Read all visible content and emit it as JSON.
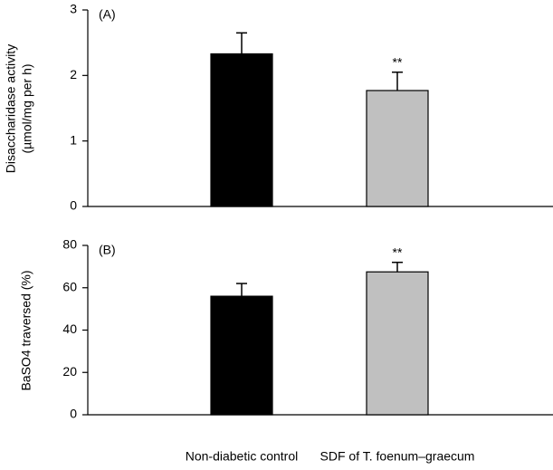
{
  "chart_data": [
    {
      "type": "bar",
      "panel_label": "(A)",
      "y_label": [
        "Disaccharidase activity",
        "(µmol/mg per h)"
      ],
      "values": [
        2.33,
        1.77
      ],
      "errors": [
        0.32,
        0.28
      ],
      "colors": [
        "#000000",
        "#c0c0c0"
      ],
      "significance": [
        null,
        "**"
      ],
      "ylim": [
        0,
        3
      ],
      "yticks": [
        0,
        1,
        2,
        3
      ]
    },
    {
      "type": "bar",
      "panel_label": "(B)",
      "y_label": [
        "BaSO4 traversed (%)"
      ],
      "categories": [
        "Non-diabetic control",
        "SDF of T. foenum–graecum"
      ],
      "values": [
        56,
        67.5
      ],
      "errors": [
        6,
        4.5
      ],
      "colors": [
        "#000000",
        "#c0c0c0"
      ],
      "significance": [
        null,
        "**"
      ],
      "ylim": [
        0,
        80
      ],
      "yticks": [
        0,
        20,
        40,
        60,
        80
      ]
    }
  ]
}
